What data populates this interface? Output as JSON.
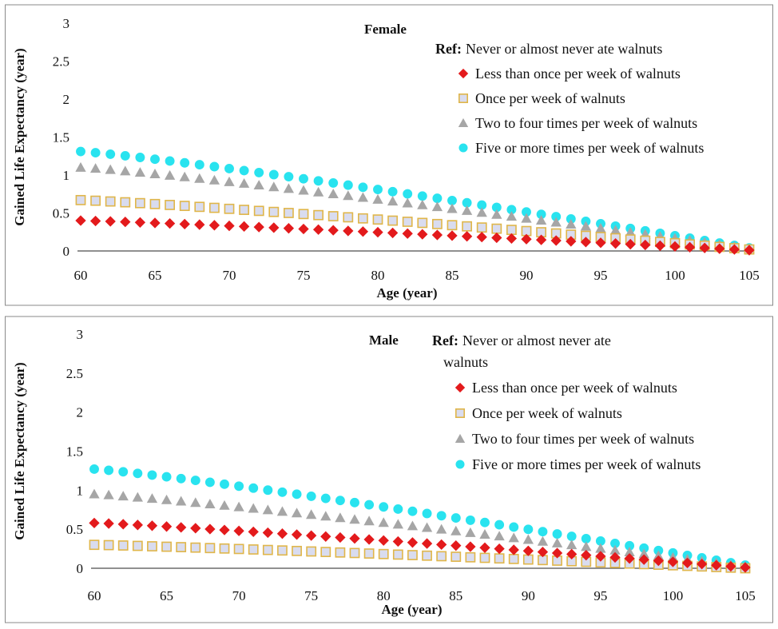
{
  "colors": {
    "less_than_once": "#e31a1c",
    "once": "#d9dcef",
    "once_stroke": "#e0b64a",
    "two_to_four": "#a6a6a6",
    "five_or_more": "#29e3ef"
  },
  "chart_data": [
    {
      "type": "scatter",
      "title": "Female",
      "xlabel": "Age (year)",
      "ylabel": "Gained Life Expectancy (year)",
      "xlim": [
        60,
        105
      ],
      "ylim": [
        0,
        3
      ],
      "xticks": [
        "60",
        "65",
        "70",
        "75",
        "80",
        "85",
        "90",
        "95",
        "100",
        "105"
      ],
      "yticks": [
        "0",
        "0.5",
        "1",
        "1.5",
        "2",
        "2.5",
        "3"
      ],
      "legend_ref_label": "Ref:",
      "legend_ref_lines": [
        "Never or almost never ate walnuts"
      ],
      "x": [
        60,
        105
      ],
      "series": [
        {
          "name": "Less than once per week of walnuts",
          "marker": "diamond",
          "start": 0.4,
          "end": 0.01
        },
        {
          "name": "Once per week of walnuts",
          "marker": "square",
          "start": 0.67,
          "end": 0.02
        },
        {
          "name": "Two to four times per week of walnuts",
          "marker": "triangle",
          "start": 1.1,
          "end": 0.03
        },
        {
          "name": "Five or more times per week of walnuts",
          "marker": "circle",
          "start": 1.31,
          "end": 0.04
        }
      ]
    },
    {
      "type": "scatter",
      "title": "Male",
      "xlabel": "Age (year)",
      "ylabel": "Gained Life Expectancy (year)",
      "xlim": [
        60,
        105
      ],
      "ylim": [
        0,
        3
      ],
      "xticks": [
        "60",
        "65",
        "70",
        "75",
        "80",
        "85",
        "90",
        "95",
        "100",
        "105"
      ],
      "yticks": [
        "0",
        "0.5",
        "1",
        "1.5",
        "2",
        "2.5",
        "3"
      ],
      "legend_ref_label": "Ref:",
      "legend_ref_lines": [
        "Never or almost never ate",
        "walnuts"
      ],
      "x": [
        60,
        105
      ],
      "series": [
        {
          "name": "Less than once per week of walnuts",
          "marker": "diamond",
          "start": 0.58,
          "end": 0.01
        },
        {
          "name": "Once per week of walnuts",
          "marker": "square",
          "start": 0.3,
          "end": 0.0
        },
        {
          "name": "Two to four times per week of walnuts",
          "marker": "triangle",
          "start": 0.95,
          "end": 0.02
        },
        {
          "name": "Five or more times per week of walnuts",
          "marker": "circle",
          "start": 1.27,
          "end": 0.04
        }
      ]
    }
  ]
}
